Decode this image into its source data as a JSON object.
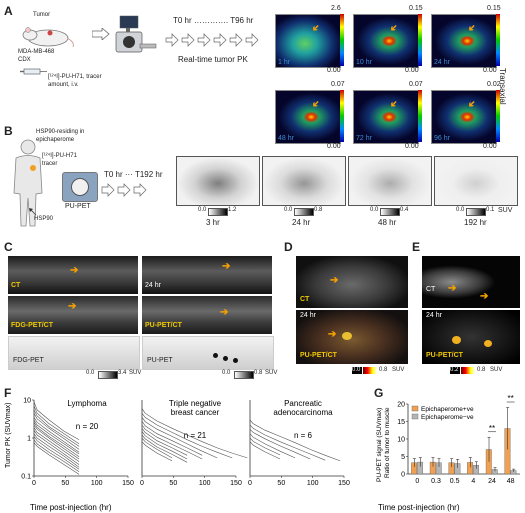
{
  "panels": {
    "a": {
      "label": "A",
      "tumor": "Tumor",
      "model": "MDA-MB-468\nCDX",
      "tracer": "[¹²⁴I]-PU-H71, tracer\namount, i.v.",
      "timeline": "T0 hr …………. T96 hr",
      "caption": "Real-time tumor PK",
      "side": "Transaxial",
      "images": [
        {
          "time": "1 hr",
          "max": "2.6",
          "min": "0.00"
        },
        {
          "time": "10 hr",
          "max": "0.15",
          "min": "0.00"
        },
        {
          "time": "24 hr",
          "max": "0.15",
          "min": "0.00"
        },
        {
          "time": "48 hr",
          "max": "0.07",
          "min": "0.00"
        },
        {
          "time": "72 hr",
          "max": "0.07",
          "min": "0.00"
        },
        {
          "time": "96 hr",
          "max": "0.02",
          "min": "0.00"
        }
      ]
    },
    "b": {
      "label": "B",
      "epi": "HSP90-residing in\nepichaperome",
      "tracer": "[¹²⁴I]-PU-H71\ntracer",
      "hsp": "HSP90",
      "scanner": "PU-PET",
      "timeline": "T0 hr ··· T192 hr",
      "suv": "SUV",
      "images": [
        {
          "time": "3 hr",
          "lo": "0.0",
          "hi": "1.2"
        },
        {
          "time": "24 hr",
          "lo": "0.0",
          "hi": "0.8"
        },
        {
          "time": "48 hr",
          "lo": "0.0",
          "hi": "0.4"
        },
        {
          "time": "192 hr",
          "lo": "0.0",
          "hi": "0.1"
        }
      ]
    },
    "c": {
      "label": "C",
      "ct": "CT",
      "fdg_ct": "FDG-PET/CT",
      "fdg": "FDG-PET",
      "time": "24 hr",
      "pu_ct": "PU-PET/CT",
      "pu": "PU-PET",
      "scale1": {
        "lo": "0.0",
        "hi": "3.4",
        "unit": "SUV"
      },
      "scale2": {
        "lo": "0.0",
        "hi": "0.8",
        "unit": "SUV"
      }
    },
    "d": {
      "label": "D",
      "ct": "CT",
      "time": "24 hr",
      "fused": "PU-PET/CT",
      "scale": {
        "lo": "0.0",
        "hi": "0.8",
        "unit": "SUV"
      }
    },
    "e": {
      "label": "E",
      "ct": "CT",
      "time": "24 hr",
      "fused": "PU-PET/CT",
      "scale": {
        "lo": "0.2",
        "hi": "0.8",
        "unit": "SUV"
      }
    },
    "f": {
      "label": "F",
      "ylabel": "Tumor PK (SUVmax)",
      "xlabel": "Time post-injection (hr)"
    },
    "g": {
      "label": "G",
      "ylabel1": "PU-PET signal (SUVmax)",
      "ylabel2": "Ratio of tumor to muscle",
      "xlabel": "Time post-injection (hr)",
      "sig": "**"
    }
  },
  "chart_data": [
    {
      "type": "line",
      "title": "Lymphoma",
      "annotation": "n = 20",
      "ylabel": "Tumor PK (SUVmax)",
      "ylim": [
        0.1,
        10
      ],
      "yscale": "log",
      "xlim": [
        0,
        150
      ],
      "xticks": [
        0,
        50,
        100,
        150
      ],
      "yticks": [
        "0.1",
        "1",
        "10"
      ],
      "series": [
        {
          "x": [
            0,
            5,
            24,
            48,
            72
          ],
          "y": [
            9.0,
            5.5,
            3.0,
            1.5,
            0.9
          ]
        },
        {
          "x": [
            0,
            5,
            24,
            48,
            72
          ],
          "y": [
            7.0,
            4.5,
            2.4,
            1.3,
            0.7
          ]
        },
        {
          "x": [
            0,
            5,
            24,
            48,
            72
          ],
          "y": [
            5.5,
            3.8,
            2.0,
            1.1,
            0.6
          ]
        },
        {
          "x": [
            0,
            5,
            24,
            48,
            72
          ],
          "y": [
            4.5,
            3.2,
            1.8,
            0.95,
            0.5
          ]
        },
        {
          "x": [
            0,
            5,
            24,
            48,
            72
          ],
          "y": [
            3.5,
            2.6,
            1.5,
            0.8,
            0.42
          ]
        },
        {
          "x": [
            0,
            5,
            24,
            48,
            72
          ],
          "y": [
            3.0,
            2.2,
            1.3,
            0.7,
            0.38
          ]
        },
        {
          "x": [
            0,
            5,
            24,
            48,
            72
          ],
          "y": [
            2.6,
            1.9,
            1.1,
            0.6,
            0.32
          ]
        },
        {
          "x": [
            0,
            5,
            24,
            48,
            72
          ],
          "y": [
            2.2,
            1.7,
            1.0,
            0.52,
            0.28
          ]
        },
        {
          "x": [
            0,
            5,
            24,
            48,
            72
          ],
          "y": [
            1.9,
            1.4,
            0.85,
            0.45,
            0.24
          ]
        },
        {
          "x": [
            0,
            5,
            24,
            48,
            72
          ],
          "y": [
            1.6,
            1.2,
            0.72,
            0.38,
            0.2
          ]
        },
        {
          "x": [
            0,
            5,
            24,
            48,
            72
          ],
          "y": [
            1.3,
            1.0,
            0.6,
            0.33,
            0.17
          ]
        },
        {
          "x": [
            0,
            5,
            24,
            48,
            72
          ],
          "y": [
            1.1,
            0.85,
            0.5,
            0.28,
            0.15
          ]
        },
        {
          "x": [
            0,
            5,
            24,
            48,
            72
          ],
          "y": [
            0.9,
            0.7,
            0.42,
            0.24,
            0.13
          ]
        },
        {
          "x": [
            0,
            5,
            24,
            48,
            72
          ],
          "y": [
            0.75,
            0.6,
            0.36,
            0.2,
            0.11
          ]
        }
      ]
    },
    {
      "type": "line",
      "title": "Triple negative\nbreast cancer",
      "annotation": "n = 21",
      "ylim": [
        0.1,
        10
      ],
      "yscale": "log",
      "xlim": [
        0,
        150
      ],
      "xticks": [
        0,
        50,
        100,
        150
      ],
      "series": [
        {
          "x": [
            0,
            5,
            24,
            48,
            72,
            96,
            120,
            144,
            168
          ],
          "y": [
            6.0,
            4.5,
            2.8,
            1.8,
            1.2,
            0.8,
            0.55,
            0.4,
            0.3
          ]
        },
        {
          "x": [
            0,
            5,
            24,
            48,
            72,
            96,
            120,
            144
          ],
          "y": [
            4.5,
            3.5,
            2.2,
            1.4,
            0.9,
            0.6,
            0.42,
            0.3
          ]
        },
        {
          "x": [
            0,
            5,
            24,
            48,
            72,
            96,
            120
          ],
          "y": [
            3.5,
            2.7,
            1.7,
            1.1,
            0.7,
            0.45,
            0.3
          ]
        },
        {
          "x": [
            0,
            5,
            24,
            48,
            72,
            96
          ],
          "y": [
            2.8,
            2.1,
            1.3,
            0.85,
            0.55,
            0.35
          ]
        },
        {
          "x": [
            0,
            5,
            24,
            48,
            72,
            96
          ],
          "y": [
            2.2,
            1.7,
            1.05,
            0.68,
            0.44,
            0.28
          ]
        },
        {
          "x": [
            0,
            5,
            24,
            48,
            72
          ],
          "y": [
            1.8,
            1.4,
            0.85,
            0.55,
            0.35
          ]
        },
        {
          "x": [
            0,
            5,
            24,
            48,
            72
          ],
          "y": [
            1.5,
            1.15,
            0.7,
            0.45,
            0.28
          ]
        },
        {
          "x": [
            0,
            5,
            24,
            48,
            72
          ],
          "y": [
            1.2,
            0.95,
            0.58,
            0.37,
            0.23
          ]
        },
        {
          "x": [
            0,
            5,
            24,
            48
          ],
          "y": [
            1.0,
            0.8,
            0.5,
            0.3
          ]
        },
        {
          "x": [
            0,
            5,
            24,
            48
          ],
          "y": [
            0.8,
            0.65,
            0.4,
            0.25
          ]
        }
      ]
    },
    {
      "type": "line",
      "title": "Pancreatic\nadenocarcinoma",
      "annotation": "n = 6",
      "ylim": [
        0.1,
        10
      ],
      "yscale": "log",
      "xlim": [
        0,
        150
      ],
      "xticks": [
        0,
        50,
        100,
        150
      ],
      "series": [
        {
          "x": [
            0,
            5,
            24,
            48,
            72,
            96,
            120,
            144
          ],
          "y": [
            3.0,
            2.4,
            1.6,
            1.1,
            0.75,
            0.5,
            0.35,
            0.25
          ]
        },
        {
          "x": [
            0,
            5,
            24,
            48,
            72,
            96,
            120
          ],
          "y": [
            2.2,
            1.8,
            1.2,
            0.8,
            0.55,
            0.38,
            0.26
          ]
        },
        {
          "x": [
            0,
            5,
            24,
            48,
            72,
            96
          ],
          "y": [
            1.7,
            1.4,
            0.95,
            0.62,
            0.42,
            0.28
          ]
        },
        {
          "x": [
            0,
            5,
            24,
            48,
            72
          ],
          "y": [
            1.3,
            1.05,
            0.7,
            0.45,
            0.3
          ]
        },
        {
          "x": [
            0,
            5,
            24,
            48
          ],
          "y": [
            1.0,
            0.82,
            0.55,
            0.36
          ]
        },
        {
          "x": [
            0,
            5,
            24,
            48
          ],
          "y": [
            0.8,
            0.65,
            0.43,
            0.28
          ]
        }
      ]
    },
    {
      "type": "bar",
      "ylabel": "PU-PET signal (SUVmax) Ratio of tumor to muscle",
      "xlabel": "Time post-injection (hr)",
      "categories": [
        "0",
        "0.3",
        "0.5",
        "4",
        "24",
        "48"
      ],
      "ylim": [
        0,
        20
      ],
      "yticks": [
        "0",
        "5",
        "10",
        "15",
        "20"
      ],
      "legend": "top-left",
      "series": [
        {
          "name": "Epichaperome+ve",
          "color": "#f0a050",
          "values": [
            3.2,
            3.4,
            3.2,
            3.3,
            7.0,
            13.0
          ],
          "errors": [
            1.2,
            1.3,
            1.2,
            1.4,
            3.5,
            6.0
          ]
        },
        {
          "name": "Epichaperome−ve",
          "color": "#b5b5b5",
          "values": [
            3.4,
            3.2,
            3.0,
            2.5,
            1.3,
            1.0
          ],
          "errors": [
            1.3,
            1.2,
            1.2,
            1.0,
            0.5,
            0.4
          ]
        }
      ],
      "annotations": [
        "**",
        "**"
      ]
    }
  ]
}
